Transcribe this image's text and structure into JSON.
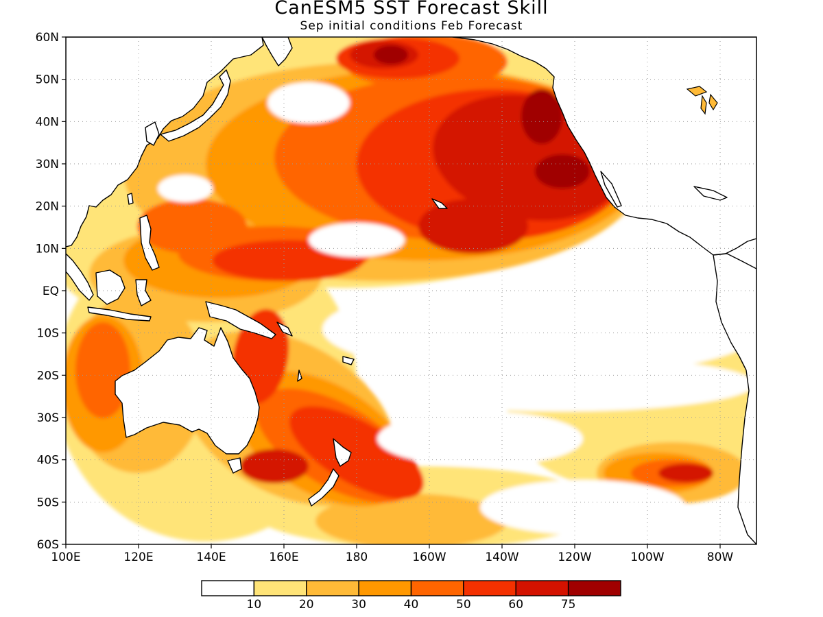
{
  "title": "CanESM5 SST Forecast Skill",
  "subtitle": "Sep initial conditions  Feb Forecast",
  "map": {
    "lon_range": [
      100,
      290
    ],
    "lat_range": [
      -60,
      60
    ],
    "lat_ticks": [
      {
        "value": 60,
        "label": "60N"
      },
      {
        "value": 50,
        "label": "50N"
      },
      {
        "value": 40,
        "label": "40N"
      },
      {
        "value": 30,
        "label": "30N"
      },
      {
        "value": 20,
        "label": "20N"
      },
      {
        "value": 10,
        "label": "10N"
      },
      {
        "value": 0,
        "label": "EQ"
      },
      {
        "value": -10,
        "label": "10S"
      },
      {
        "value": -20,
        "label": "20S"
      },
      {
        "value": -30,
        "label": "30S"
      },
      {
        "value": -40,
        "label": "40S"
      },
      {
        "value": -50,
        "label": "50S"
      },
      {
        "value": -60,
        "label": "60S"
      }
    ],
    "lon_ticks": [
      {
        "value": 100,
        "label": "100E"
      },
      {
        "value": 120,
        "label": "120E"
      },
      {
        "value": 140,
        "label": "140E"
      },
      {
        "value": 160,
        "label": "160E"
      },
      {
        "value": 180,
        "label": "180"
      },
      {
        "value": 200,
        "label": "160W"
      },
      {
        "value": 220,
        "label": "140W"
      },
      {
        "value": 240,
        "label": "120W"
      },
      {
        "value": 260,
        "label": "100W"
      },
      {
        "value": 280,
        "label": "80W"
      }
    ],
    "grid": "dotted"
  },
  "colorbar": {
    "colors": [
      "#ffffff",
      "#ffe478",
      "#ffba37",
      "#ff9800",
      "#ff6500",
      "#f43100",
      "#d41200",
      "#a00000"
    ],
    "labels": [
      "10",
      "20",
      "30",
      "40",
      "50",
      "60",
      "75"
    ]
  }
}
